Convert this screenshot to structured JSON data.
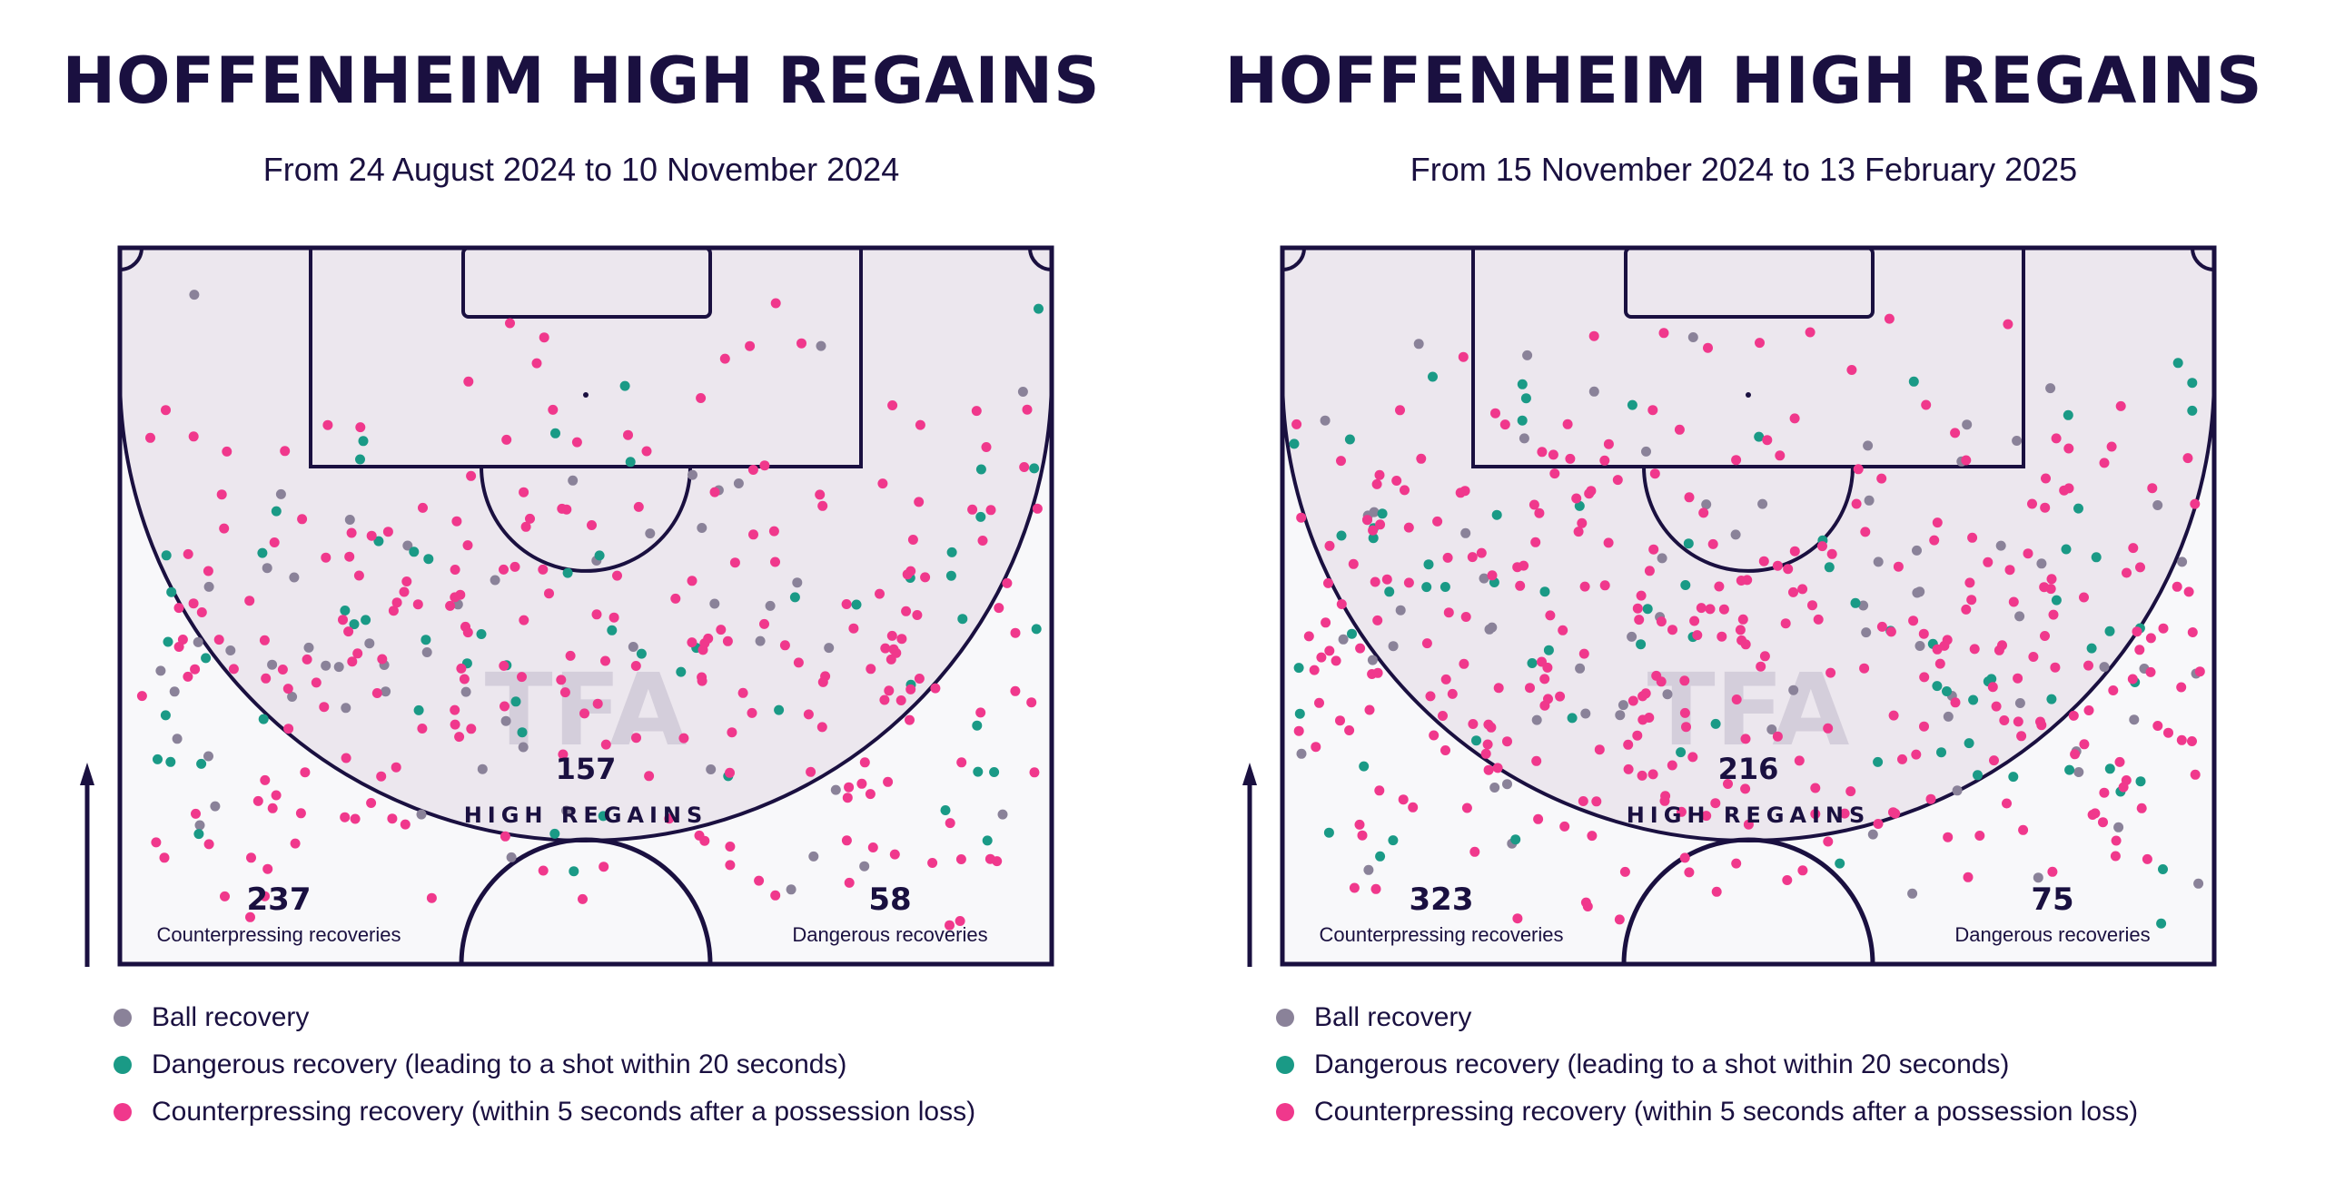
{
  "chart_data": [
    {
      "type": "scatter",
      "title": "HOFFENHEIM HIGH REGAINS",
      "subtitle": "From 24 August 2024 to 10 November 2024",
      "watermark": "TFA",
      "stats": {
        "total": {
          "value": "157",
          "label": "HIGH REGAINS"
        },
        "counterpressing": {
          "value": "237",
          "label": "Counterpressing recoveries"
        },
        "dangerous": {
          "value": "58",
          "label": "Dangerous recoveries"
        }
      },
      "series": [
        {
          "key": "ball",
          "count": 55,
          "seed": 11
        },
        {
          "key": "dangerous",
          "count": 58,
          "seed": 23
        },
        {
          "key": "counter",
          "count": 237,
          "seed": 37
        }
      ]
    },
    {
      "type": "scatter",
      "title": "HOFFENHEIM HIGH REGAINS",
      "subtitle": "From 15 November 2024 to 13 February 2025",
      "watermark": "TFA",
      "stats": {
        "total": {
          "value": "216",
          "label": "HIGH REGAINS"
        },
        "counterpressing": {
          "value": "323",
          "label": "Counterpressing recoveries"
        },
        "dangerous": {
          "value": "75",
          "label": "Dangerous recoveries"
        }
      },
      "series": [
        {
          "key": "ball",
          "count": 70,
          "seed": 53
        },
        {
          "key": "dangerous",
          "count": 75,
          "seed": 67
        },
        {
          "key": "counter",
          "count": 323,
          "seed": 79
        }
      ]
    }
  ],
  "legend": [
    {
      "key": "ball",
      "label": "Ball recovery",
      "color": "#8a8299"
    },
    {
      "key": "dangerous",
      "label": "Dangerous recovery (leading to a shot within 20 seconds)",
      "color": "#1a9a86"
    },
    {
      "key": "counter",
      "label": "Counterpressing recovery (within 5 seconds after a possession loss)",
      "color": "#f0388c"
    }
  ],
  "colors": {
    "navy": "#1a1040",
    "pitch_bg": "#f8f8fa",
    "zone_fill": "#ece7ee"
  },
  "icons": {
    "direction": "arrow-up-icon"
  }
}
